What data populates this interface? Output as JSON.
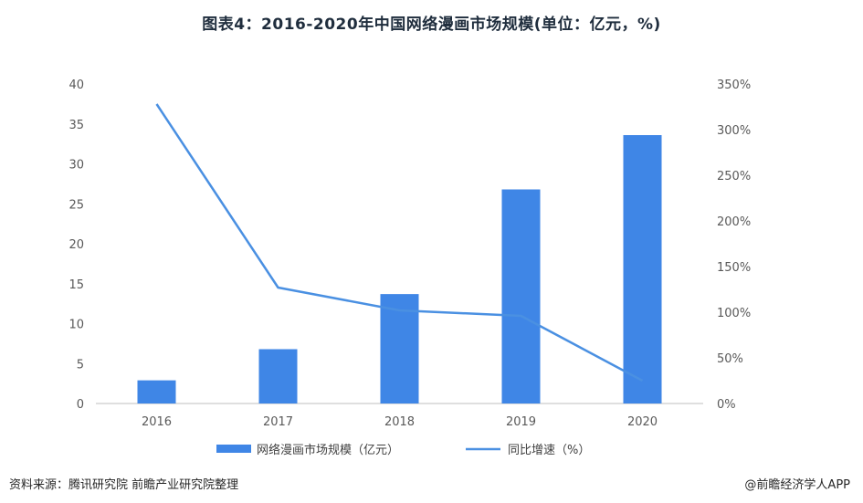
{
  "title": "图表4：2016-2020年中国网络漫画市场规模(单位：亿元，%)",
  "footer": {
    "source": "资料来源：腾讯研究院 前瞻产业研究院整理",
    "brand": "@前瞻经济学人APP"
  },
  "chart_data": {
    "type": "bar",
    "categories": [
      "2016",
      "2017",
      "2018",
      "2019",
      "2020"
    ],
    "series": [
      {
        "name": "网络漫画市场规模（亿元）",
        "type": "bar",
        "axis": "left",
        "values": [
          2.9,
          6.8,
          13.7,
          26.8,
          33.6
        ]
      },
      {
        "name": "同比增速（%）",
        "type": "line",
        "axis": "right",
        "values": [
          328,
          127,
          102,
          96,
          25
        ]
      }
    ],
    "y_left": {
      "min": 0,
      "max": 40,
      "ticks": [
        "0",
        "5",
        "10",
        "15",
        "20",
        "25",
        "30",
        "35",
        "40"
      ]
    },
    "y_right": {
      "min": 0,
      "max": 350,
      "ticks": [
        "0%",
        "50%",
        "100%",
        "150%",
        "200%",
        "250%",
        "300%",
        "350%"
      ]
    },
    "legend_position": "bottom",
    "grid": false,
    "colors": {
      "bar": "#3f86e6",
      "line": "#4a90e2",
      "axis": "#bfbfbf"
    }
  }
}
